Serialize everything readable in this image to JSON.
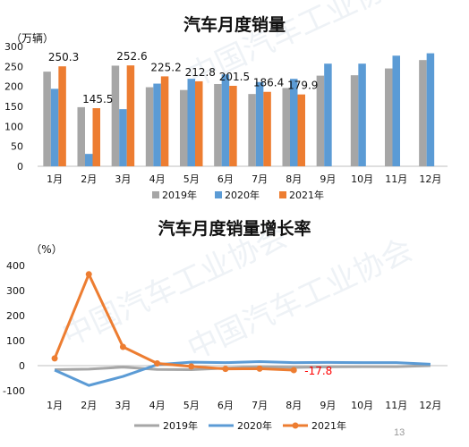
{
  "page_number": "13",
  "watermark": "中国汽车工业协会",
  "chart_data": [
    {
      "type": "bar",
      "title": "汽车月度销量",
      "unit_label": "（万辆）",
      "categories": [
        "1月",
        "2月",
        "3月",
        "4月",
        "5月",
        "6月",
        "7月",
        "8月",
        "9月",
        "10月",
        "11月",
        "12月"
      ],
      "ylim": [
        0,
        300
      ],
      "yticks": [
        0,
        50,
        100,
        150,
        200,
        250,
        300
      ],
      "grid": false,
      "legend_position": "bottom",
      "series": [
        {
          "name": "2019年",
          "color": "#a6a6a6",
          "values": [
            237,
            148,
            252,
            198,
            191,
            206,
            181,
            196,
            227,
            228,
            245,
            266
          ]
        },
        {
          "name": "2020年",
          "color": "#5b9bd5",
          "values": [
            194,
            31,
            143,
            207,
            219,
            230,
            211,
            219,
            257,
            257,
            277,
            283
          ]
        },
        {
          "name": "2021年",
          "color": "#ed7d31",
          "values": [
            250.3,
            145.5,
            252.6,
            225.2,
            212.8,
            201.5,
            186.4,
            179.9,
            null,
            null,
            null,
            null
          ]
        }
      ],
      "data_labels": [
        {
          "category": "1月",
          "text": "250.3"
        },
        {
          "category": "2月",
          "text": "145.5"
        },
        {
          "category": "3月",
          "text": "252.6"
        },
        {
          "category": "4月",
          "text": "225.2"
        },
        {
          "category": "5月",
          "text": "212.8"
        },
        {
          "category": "6月",
          "text": "201.5"
        },
        {
          "category": "7月",
          "text": "186.4"
        },
        {
          "category": "8月",
          "text": "179.9"
        }
      ]
    },
    {
      "type": "line",
      "title": "汽车月度销量增长率",
      "unit_label": "（%）",
      "categories": [
        "1月",
        "2月",
        "3月",
        "4月",
        "5月",
        "6月",
        "7月",
        "8月",
        "9月",
        "10月",
        "11月",
        "12月"
      ],
      "ylim": [
        -100,
        400
      ],
      "yticks": [
        -100,
        0,
        100,
        200,
        300,
        400
      ],
      "grid": false,
      "legend_position": "bottom",
      "series": [
        {
          "name": "2019年",
          "color": "#a6a6a6",
          "values": [
            -16,
            -14,
            -6,
            -15,
            -16,
            -10,
            -4,
            -7,
            -5,
            -4,
            -4,
            0
          ]
        },
        {
          "name": "2020年",
          "color": "#5b9bd5",
          "values": [
            -18,
            -79,
            -43,
            4,
            14,
            12,
            16,
            12,
            13,
            12,
            12,
            6
          ]
        },
        {
          "name": "2021年",
          "color": "#ed7d31",
          "values": [
            29,
            365,
            75,
            9,
            -3,
            -13,
            -12,
            -17.8,
            null,
            null,
            null,
            null
          ]
        }
      ],
      "end_label": {
        "text": "-17.8",
        "color": "#ff0000"
      }
    }
  ]
}
